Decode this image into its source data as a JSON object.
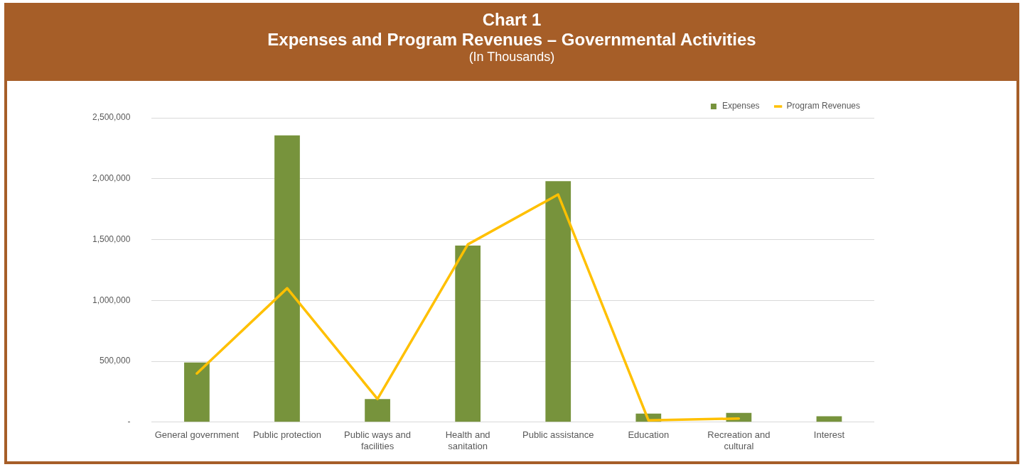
{
  "chart_data": {
    "type": "bar",
    "title": "Chart 1",
    "subtitle": "Expenses and Program Revenues – Governmental Activities",
    "annotations": [
      "(In Thousands)"
    ],
    "categories": [
      "General government",
      "Public protection",
      "Public ways and facilities",
      "Health and sanitation",
      "Public assistance",
      "Education",
      "Recreation and cultural",
      "Interest"
    ],
    "series": [
      {
        "name": "Expenses",
        "color": "#77933c",
        "values": [
          490000,
          2355000,
          190000,
          1450000,
          1980000,
          70000,
          76000,
          48000
        ]
      },
      {
        "name": "Program Revenues",
        "type": "line",
        "color": "#ffc000",
        "values": [
          400000,
          1100000,
          190000,
          1460000,
          1870000,
          15000,
          30000,
          null
        ]
      }
    ],
    "ylim": [
      0,
      2500000
    ],
    "yticks": [
      {
        "value": 0,
        "label": "-"
      },
      {
        "value": 500000,
        "label": "500,000"
      },
      {
        "value": 1000000,
        "label": "1,000,000"
      },
      {
        "value": 1500000,
        "label": "1,500,000"
      },
      {
        "value": 2000000,
        "label": "2,000,000"
      },
      {
        "value": 2500000,
        "label": "2,500,000"
      }
    ],
    "grid": "y",
    "legend": "top right",
    "marker": "none",
    "line_style": "solid"
  }
}
